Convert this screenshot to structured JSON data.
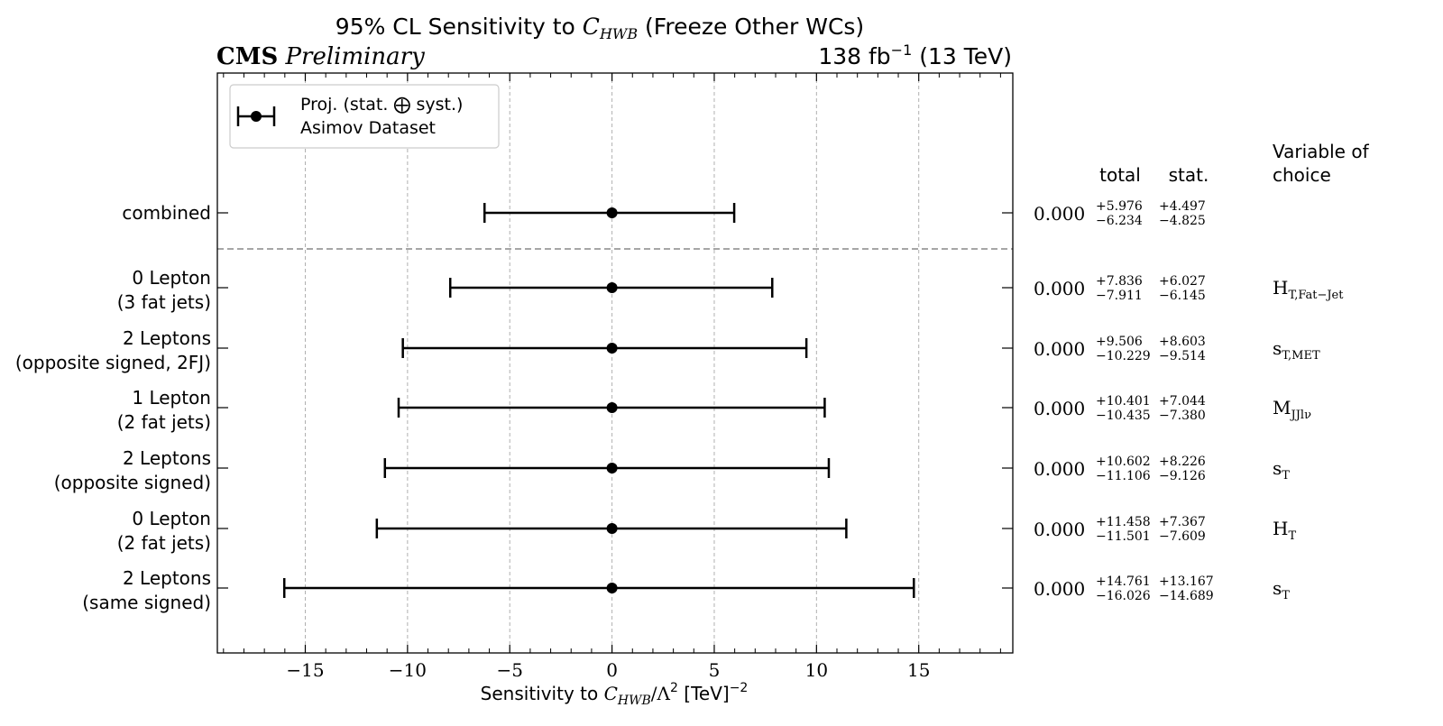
{
  "chart_data": {
    "type": "errorbar",
    "title_prefix": "95% CL Sensitivity to",
    "title_wc": "C",
    "title_wc_sub": "HWB",
    "title_suffix": "(Freeze Other WCs)",
    "experiment": "CMS",
    "experiment_tag": "Preliminary",
    "lumi_value": "138 fb",
    "lumi_exp": "−1",
    "lumi_energy": "(13 TeV)",
    "xlabel_prefix": "Sensitivity to",
    "xlabel_var": "C",
    "xlabel_sub": "HWB",
    "xlabel_div": "/Λ",
    "xlabel_sq": "2",
    "xlabel_unit": "[TeV]",
    "xlabel_unit_exp": "−2",
    "xlim": [
      -19.3,
      19.6
    ],
    "xticks": [
      -15,
      -10,
      -5,
      0,
      5,
      10,
      15
    ],
    "xtick_labels": [
      "−15",
      "−10",
      "−5",
      "0",
      "5",
      "10",
      "15"
    ],
    "grid": "vertical dashed",
    "legend": {
      "position": "top-left",
      "line1": "Proj. (stat. ⨁ syst.)",
      "line2": "Asimov Dataset"
    },
    "columns": {
      "total": "total",
      "stat": "stat.",
      "variable_line1": "Variable of",
      "variable_line2": "choice"
    },
    "rows": [
      {
        "label1": "combined",
        "label2": "",
        "center": 0.0,
        "center_text": "0.000",
        "total_up": "+5.976",
        "total_down": "−6.234",
        "stat_up": "+4.497",
        "stat_down": "−4.825",
        "up": 5.976,
        "down": 6.234,
        "var_main": "",
        "var_sub": ""
      },
      {
        "label1": "0 Lepton",
        "label2": "(3 fat jets)",
        "center": 0.0,
        "center_text": "0.000",
        "total_up": "+7.836",
        "total_down": "−7.911",
        "stat_up": "+6.027",
        "stat_down": "−6.145",
        "up": 7.836,
        "down": 7.911,
        "var_main": "H",
        "var_sub": "T,Fat−Jet"
      },
      {
        "label1": "2 Leptons",
        "label2": "(opposite signed, 2FJ)",
        "center": 0.0,
        "center_text": "0.000",
        "total_up": "+9.506",
        "total_down": "−10.229",
        "stat_up": "+8.603",
        "stat_down": "−9.514",
        "up": 9.506,
        "down": 10.229,
        "var_main": "s",
        "var_sub": "T,MET"
      },
      {
        "label1": "1 Lepton",
        "label2": "(2 fat jets)",
        "center": 0.0,
        "center_text": "0.000",
        "total_up": "+10.401",
        "total_down": "−10.435",
        "stat_up": "+7.044",
        "stat_down": "−7.380",
        "up": 10.401,
        "down": 10.435,
        "var_main": "M",
        "var_sub": "JJlν"
      },
      {
        "label1": "2 Leptons",
        "label2": "(opposite signed)",
        "center": 0.0,
        "center_text": "0.000",
        "total_up": "+10.602",
        "total_down": "−11.106",
        "stat_up": "+8.226",
        "stat_down": "−9.126",
        "up": 10.602,
        "down": 11.106,
        "var_main": "s",
        "var_sub": "T"
      },
      {
        "label1": "0 Lepton",
        "label2": "(2 fat jets)",
        "center": 0.0,
        "center_text": "0.000",
        "total_up": "+11.458",
        "total_down": "−11.501",
        "stat_up": "+7.367",
        "stat_down": "−7.609",
        "up": 11.458,
        "down": 11.501,
        "var_main": "H",
        "var_sub": "T"
      },
      {
        "label1": "2 Leptons",
        "label2": "(same signed)",
        "center": 0.0,
        "center_text": "0.000",
        "total_up": "+14.761",
        "total_down": "−16.026",
        "stat_up": "+13.167",
        "stat_down": "−14.689",
        "up": 14.761,
        "down": 16.026,
        "var_main": "s",
        "var_sub": "T"
      }
    ]
  }
}
